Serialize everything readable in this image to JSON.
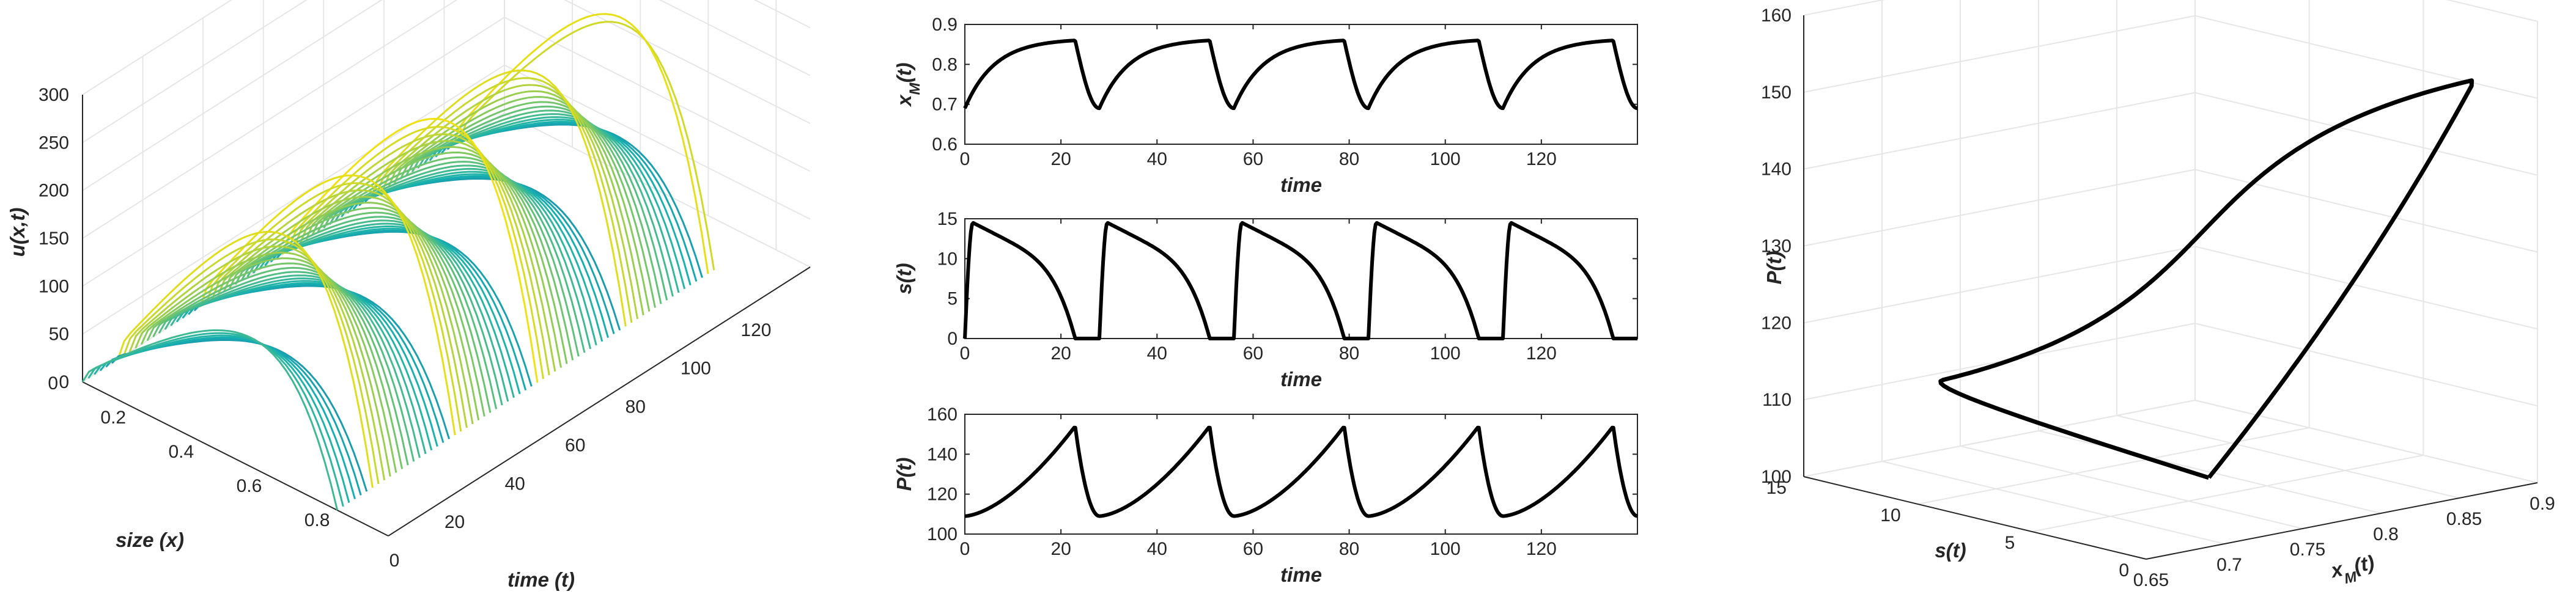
{
  "colors": {
    "line": "#000000",
    "grid": "#e6e6e6",
    "axis": "#262626",
    "surface_low": "#30009a",
    "surface_mid": "#16b0b0",
    "surface_high": "#f5e20c"
  },
  "chart_data": [
    {
      "type": "surface3d",
      "zlabel": "u(x,t)",
      "xlabel": "size (x)",
      "ylabel": "time (t)",
      "x_ticks": [
        "0",
        "0.2",
        "0.4",
        "0.6",
        "0.8"
      ],
      "t_ticks": [
        "0",
        "20",
        "40",
        "60",
        "80",
        "100",
        "120"
      ],
      "z_ticks": [
        "0",
        "50",
        "100",
        "150",
        "200",
        "250",
        "300"
      ],
      "xlim": [
        0,
        0.9
      ],
      "tlim": [
        0,
        140
      ],
      "zlim": [
        0,
        300
      ],
      "peak_times": [
        10,
        38,
        66,
        94,
        122
      ],
      "peak_value": 285,
      "grid": true
    },
    {
      "type": "line",
      "ylabel": "x_M(t)",
      "xlabel": "time",
      "xlim": [
        0,
        140
      ],
      "ylim": [
        0.6,
        0.9
      ],
      "x_ticks": [
        "0",
        "20",
        "40",
        "60",
        "80",
        "100",
        "120"
      ],
      "y_ticks": [
        "0.6",
        "0.7",
        "0.8",
        "0.9"
      ],
      "period": 28,
      "phase": 0,
      "min": 0.69,
      "max": 0.86
    },
    {
      "type": "line",
      "ylabel": "s(t)",
      "xlabel": "time",
      "xlim": [
        0,
        140
      ],
      "ylim": [
        0,
        15
      ],
      "x_ticks": [
        "0",
        "20",
        "40",
        "60",
        "80",
        "100",
        "120"
      ],
      "y_ticks": [
        "0",
        "5",
        "10",
        "15"
      ],
      "period": 28,
      "phase": 0,
      "min": 0,
      "max": 14.5
    },
    {
      "type": "line",
      "ylabel": "P(t)",
      "xlabel": "time",
      "xlim": [
        0,
        140
      ],
      "ylim": [
        100,
        160
      ],
      "x_ticks": [
        "0",
        "20",
        "40",
        "60",
        "80",
        "100",
        "120"
      ],
      "y_ticks": [
        "100",
        "120",
        "140",
        "160"
      ],
      "period": 28,
      "phase": 0,
      "min": 109,
      "max": 154
    },
    {
      "type": "line3d",
      "xlabel": "x_M(t)",
      "ylabel": "s(t)",
      "zlabel": "P(t)",
      "x_ticks": [
        "0.65",
        "0.7",
        "0.75",
        "0.8",
        "0.85",
        "0.9"
      ],
      "y_ticks": [
        "0",
        "5",
        "10",
        "15"
      ],
      "z_ticks": [
        "100",
        "110",
        "120",
        "130",
        "140",
        "150",
        "160"
      ],
      "xlim": [
        0.65,
        0.9
      ],
      "ylim": [
        0,
        15
      ],
      "zlim": [
        100,
        160
      ],
      "grid": true
    }
  ]
}
